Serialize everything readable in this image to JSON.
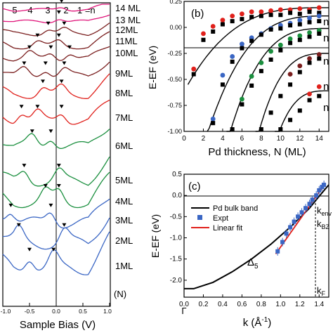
{
  "colors": {
    "red": "#e0201b",
    "green": "#1a8f3e",
    "brown": "#7a1e1e",
    "pink": "#e0157a",
    "blue": "#3a66c4",
    "black": "#000000"
  },
  "chart_data": [
    {
      "panel": "a",
      "type": "line",
      "xlabel": "Sample Bias (V)",
      "x_tick_labels": [
        "-1.0",
        "-0.5",
        "0.0",
        "0.5",
        "1.0"
      ],
      "xlim": [
        -1.0,
        1.0
      ],
      "y_marker": "(N)",
      "top_labels": [
        "5",
        "4",
        "3",
        "2",
        "1 =n"
      ],
      "series": [
        {
          "name": "14 ML",
          "color": "pink"
        },
        {
          "name": "13 ML",
          "color": "pink"
        },
        {
          "name": "12ML",
          "color": "brown"
        },
        {
          "name": "11ML",
          "color": "brown"
        },
        {
          "name": "10ML",
          "color": "brown"
        },
        {
          "name": "9ML",
          "color": "brown"
        },
        {
          "name": "8ML",
          "color": "red"
        },
        {
          "name": "7ML",
          "color": "red"
        },
        {
          "name": "6ML",
          "color": "green"
        },
        {
          "name": "5ML",
          "color": "green"
        },
        {
          "name": "4ML",
          "color": "green"
        },
        {
          "name": "3ML",
          "color": "blue"
        },
        {
          "name": "2ML",
          "color": "blue"
        },
        {
          "name": "1ML",
          "color": "blue"
        }
      ]
    },
    {
      "panel": "b",
      "type": "scatter",
      "panel_label": "(b)",
      "xlabel": "Pd thickness, N (ML)",
      "ylabel": "E-EF (eV)",
      "xlim": [
        0,
        15
      ],
      "ylim": [
        -1.0,
        0.25
      ],
      "x_ticks": [
        "0",
        "2",
        "4",
        "6",
        "8",
        "10",
        "12",
        "14"
      ],
      "y_ticks": [
        "0.25",
        "0.00",
        "-0.25",
        "-0.50",
        "-0.75",
        "-1.00"
      ],
      "series": [
        {
          "name": "n",
          "color": "red",
          "points": [
            [
              1,
              -0.4
            ],
            [
              2,
              -0.06
            ],
            [
              3,
              0.01
            ],
            [
              4,
              0.07
            ],
            [
              5,
              0.11
            ],
            [
              6,
              0.13
            ],
            [
              7,
              0.15
            ],
            [
              8,
              0.15
            ],
            [
              9,
              0.16
            ],
            [
              10,
              0.17
            ],
            [
              11,
              0.17
            ],
            [
              12,
              0.18
            ],
            [
              13,
              0.17
            ],
            [
              14,
              0.19
            ]
          ],
          "squares": [
            [
              1,
              -0.45
            ],
            [
              2,
              -0.12
            ],
            [
              3,
              -0.04
            ],
            [
              4,
              0.03
            ],
            [
              5,
              0.06
            ],
            [
              6,
              0.08
            ],
            [
              7,
              0.1
            ],
            [
              8,
              0.11
            ],
            [
              9,
              0.12
            ],
            [
              10,
              0.12
            ],
            [
              11,
              0.14
            ],
            [
              12,
              0.13
            ],
            [
              13,
              0.15
            ],
            [
              14,
              0.14
            ]
          ]
        },
        {
          "name": "n",
          "color": "blue",
          "points": [
            [
              3,
              -0.88
            ],
            [
              4,
              -0.46
            ],
            [
              5,
              -0.28
            ],
            [
              6,
              -0.16
            ],
            [
              7,
              -0.1
            ],
            [
              8,
              -0.06
            ],
            [
              9,
              -0.01
            ],
            [
              10,
              0.02
            ],
            [
              11,
              0.04
            ],
            [
              12,
              0.07
            ],
            [
              13,
              0.09
            ],
            [
              14,
              0.11
            ]
          ],
          "squares": [
            [
              3,
              -0.92
            ],
            [
              4,
              -0.55
            ],
            [
              5,
              -0.33
            ],
            [
              6,
              -0.2
            ],
            [
              7,
              -0.13
            ],
            [
              8,
              -0.07
            ],
            [
              9,
              -0.02
            ],
            [
              10,
              -0.01
            ],
            [
              11,
              0.02
            ],
            [
              12,
              0.03
            ],
            [
              13,
              0.05
            ],
            [
              14,
              0.06
            ]
          ]
        },
        {
          "name": "n",
          "color": "green",
          "points": [
            [
              6,
              -0.69
            ],
            [
              7,
              -0.47
            ],
            [
              8,
              -0.34
            ],
            [
              9,
              -0.23
            ],
            [
              10,
              -0.17
            ],
            [
              11,
              -0.11
            ],
            [
              12,
              -0.08
            ],
            [
              13,
              -0.05
            ],
            [
              14,
              -0.03
            ]
          ],
          "squares": [
            [
              5,
              -0.98
            ],
            [
              6,
              -0.74
            ],
            [
              7,
              -0.56
            ],
            [
              8,
              -0.42
            ],
            [
              9,
              -0.31
            ],
            [
              10,
              -0.22
            ],
            [
              11,
              -0.15
            ],
            [
              12,
              -0.12
            ],
            [
              13,
              -0.09
            ],
            [
              14,
              -0.06
            ]
          ]
        },
        {
          "name": "n",
          "color": "brown",
          "points": [
            [
              11,
              -0.45
            ],
            [
              12,
              -0.37
            ],
            [
              13,
              -0.3
            ],
            [
              14,
              -0.26
            ]
          ],
          "squares": [
            [
              8,
              -0.98
            ],
            [
              9,
              -0.82
            ],
            [
              10,
              -0.66
            ],
            [
              11,
              -0.55
            ],
            [
              12,
              -0.43
            ],
            [
              13,
              -0.34
            ],
            [
              14,
              -0.3
            ]
          ]
        },
        {
          "name": "n",
          "color": "red",
          "points": [
            [
              13,
              -0.64
            ],
            [
              14,
              -0.57
            ]
          ],
          "squares": [
            [
              10,
              -0.98
            ],
            [
              11,
              -0.89
            ],
            [
              12,
              -0.8
            ],
            [
              13,
              -0.7
            ],
            [
              14,
              -0.66
            ]
          ]
        }
      ]
    },
    {
      "panel": "c",
      "type": "line",
      "panel_label": "(c)",
      "xlabel": "k (Å",
      "xlabel_sup": "-1",
      "xlabel_end": ")",
      "ylabel": "E-EF (eV)",
      "xlim": [
        0.0,
        1.5
      ],
      "ylim": [
        -2.4,
        0.5
      ],
      "x_ticks": [
        "0.0",
        "0.2",
        "0.4",
        "0.6",
        "0.8",
        "1.0",
        "1.2",
        "1.4"
      ],
      "y_ticks": [
        "0.5",
        "0.0",
        "-0.5",
        "-1.0",
        "-1.5",
        "-2.0"
      ],
      "gamma_label": "Γ",
      "delta_label": "Δ",
      "delta_sub": "5",
      "k_labels": [
        {
          "text": "k",
          "sub": "env"
        },
        {
          "text": "k",
          "sub": "BZ"
        },
        {
          "text": "k",
          "sub": "F"
        }
      ],
      "legend": [
        {
          "label": "Pd bulk band",
          "color": "black",
          "kind": "line"
        },
        {
          "label": "Expt",
          "color": "blue",
          "kind": "square"
        },
        {
          "label": "Linear fit",
          "color": "red",
          "kind": "line"
        }
      ],
      "expt_points": [
        [
          0.97,
          -1.32
        ],
        [
          1.02,
          -1.1
        ],
        [
          1.06,
          -0.9
        ],
        [
          1.1,
          -0.75
        ],
        [
          1.14,
          -0.62
        ],
        [
          1.18,
          -0.5
        ],
        [
          1.22,
          -0.4
        ],
        [
          1.26,
          -0.3
        ],
        [
          1.3,
          -0.2
        ],
        [
          1.33,
          -0.1
        ],
        [
          1.37,
          0.0
        ],
        [
          1.4,
          0.12
        ],
        [
          1.43,
          0.2
        ],
        [
          1.45,
          0.25
        ]
      ],
      "bulk_band": [
        [
          0.0,
          -2.2
        ],
        [
          0.1,
          -2.2
        ],
        [
          0.3,
          -2.05
        ],
        [
          0.5,
          -1.8
        ],
        [
          0.7,
          -1.5
        ],
        [
          0.9,
          -1.15
        ],
        [
          1.1,
          -0.75
        ],
        [
          1.3,
          -0.3
        ],
        [
          1.4,
          -0.02
        ],
        [
          1.5,
          0.25
        ]
      ],
      "linear_fit": [
        [
          0.95,
          -1.38
        ],
        [
          1.46,
          0.27
        ]
      ],
      "k_F": 1.37
    }
  ]
}
